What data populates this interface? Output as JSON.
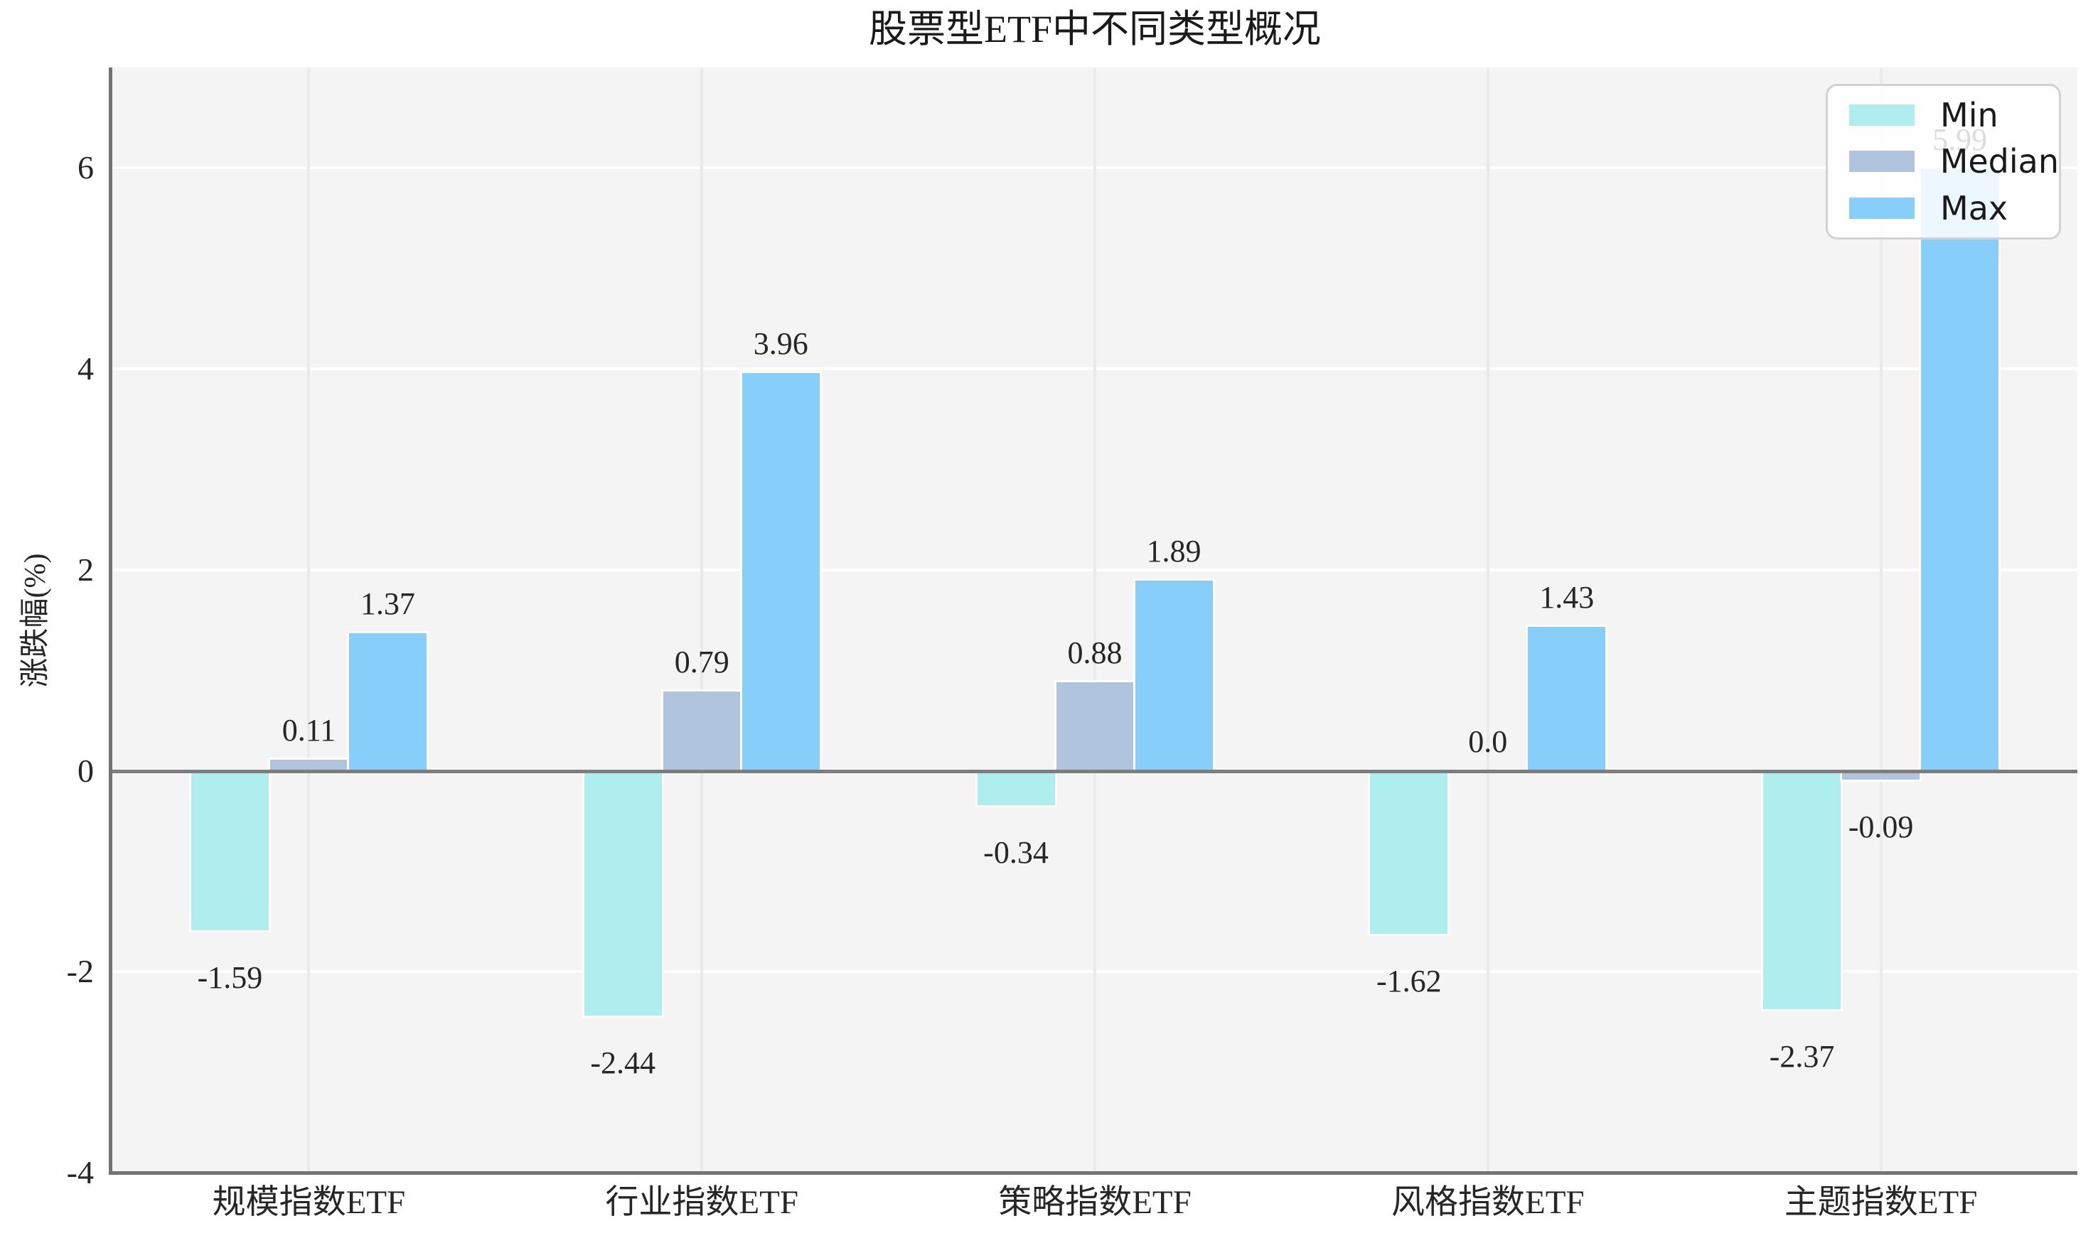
{
  "title": "股票型ETF中不同类型概况",
  "chart_data": {
    "type": "bar",
    "title": "股票型ETF中不同类型概况",
    "ylabel": "涨跌幅(%)",
    "categories": [
      "规模指数ETF",
      "行业指数ETF",
      "策略指数ETF",
      "风格指数ETF",
      "主题指数ETF"
    ],
    "series": [
      {
        "name": "Min",
        "color": "#afeeee",
        "values": [
          -1.59,
          -2.44,
          -0.34,
          -1.62,
          -2.37
        ],
        "labels": [
          "-1.59",
          "-2.44",
          "-0.34",
          "-1.62",
          "-2.37"
        ]
      },
      {
        "name": "Median",
        "color": "#b0c4de",
        "values": [
          0.11,
          0.79,
          0.88,
          0.0,
          -0.09
        ],
        "labels": [
          "0.11",
          "0.79",
          "0.88",
          "0.0",
          "-0.09"
        ]
      },
      {
        "name": "Max",
        "color": "#87cefa",
        "values": [
          1.37,
          3.96,
          1.89,
          1.43,
          5.99
        ],
        "labels": [
          "1.37",
          "3.96",
          "1.89",
          "1.43",
          "5.99"
        ]
      }
    ],
    "ylim": [
      -4,
      7
    ],
    "yticks": [
      "6",
      "4",
      "2",
      "0",
      "-2",
      "-4"
    ],
    "ytick_values": [
      6,
      4,
      2,
      0,
      -2,
      -4
    ],
    "grid": true,
    "legend_position": "upper right",
    "legend": [
      "Min",
      "Median",
      "Max"
    ]
  },
  "colors": {
    "plot_background": "#f4f4f4",
    "figure_background": "#ffffff",
    "grid_horizontal": "#ffffff",
    "grid_vertical": "#eaeaea",
    "spine": "#737373",
    "zero_line": "#7d7d7d",
    "bar_edge": "#ffffff",
    "text": "#262626",
    "legend_border": "#d2d2d2"
  }
}
